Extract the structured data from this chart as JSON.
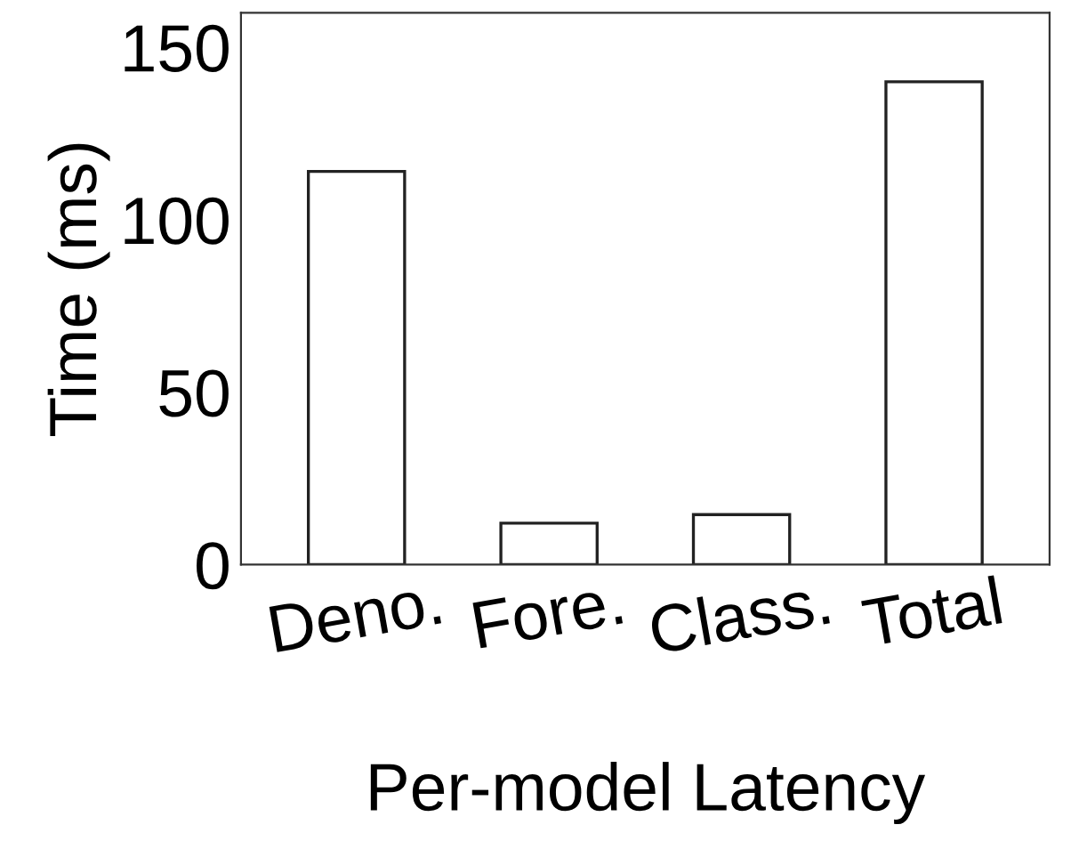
{
  "chart_data": {
    "type": "bar",
    "xlabel": "Per-model Latency",
    "ylabel": "Time (ms)",
    "categories": [
      "Deno.",
      "Fore.",
      "Class.",
      "Total"
    ],
    "values": [
      114,
      12,
      14.5,
      140
    ],
    "color": "#ffffff",
    "ylim": [
      0,
      160
    ],
    "yticks": [
      0,
      50,
      100,
      150
    ],
    "grid": false
  }
}
